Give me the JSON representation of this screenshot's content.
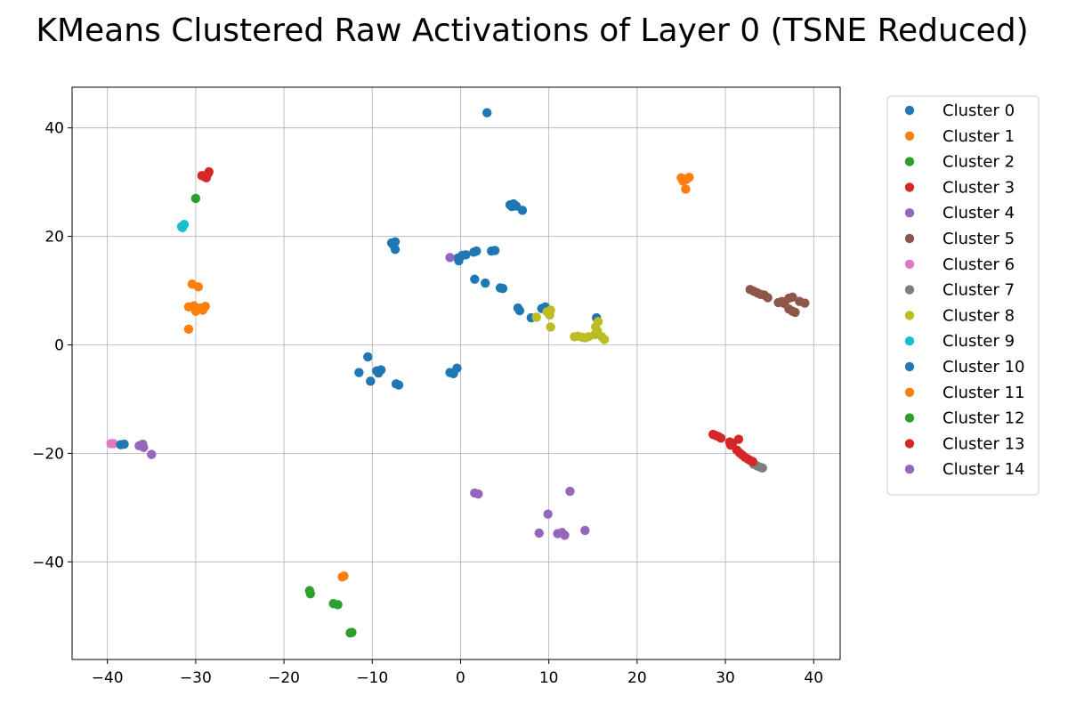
{
  "chart_data": {
    "type": "scatter",
    "title": "KMeans Clustered Raw Activations of Layer 0 (TSNE Reduced)",
    "xlabel": "",
    "ylabel": "",
    "xlim": [
      -44,
      43
    ],
    "ylim": [
      -58,
      47.5
    ],
    "xticks": [
      -40,
      -30,
      -20,
      -10,
      0,
      10,
      20,
      30,
      40
    ],
    "yticks": [
      -40,
      -20,
      0,
      20,
      40
    ],
    "xtick_labels": [
      "−40",
      "−30",
      "−20",
      "−10",
      "0",
      "10",
      "20",
      "30",
      "40"
    ],
    "ytick_labels": [
      "−40",
      "−20",
      "0",
      "20",
      "40"
    ],
    "grid": true,
    "legend_position": "outside-top-right",
    "series": [
      {
        "name": "Cluster 0",
        "color": "#1f77b4",
        "points": [
          [
            3.0,
            42.8
          ],
          [
            5.6,
            25.8
          ],
          [
            6.0,
            26.0
          ],
          [
            6.3,
            25.6
          ],
          [
            5.8,
            25.5
          ],
          [
            7.0,
            24.8
          ],
          [
            -7.8,
            18.8
          ],
          [
            -7.4,
            19.0
          ],
          [
            -7.6,
            18.4
          ],
          [
            -7.4,
            17.6
          ],
          [
            1.5,
            17.1
          ],
          [
            1.8,
            17.3
          ],
          [
            3.5,
            17.3
          ],
          [
            3.9,
            17.4
          ],
          [
            0.2,
            16.5
          ],
          [
            0.6,
            16.6
          ],
          [
            -0.3,
            16.0
          ],
          [
            -0.2,
            15.5
          ],
          [
            1.6,
            12.1
          ],
          [
            2.8,
            11.4
          ],
          [
            4.5,
            10.5
          ],
          [
            4.8,
            10.4
          ],
          [
            6.5,
            6.8
          ],
          [
            6.7,
            6.3
          ],
          [
            9.2,
            6.7
          ],
          [
            9.6,
            7.0
          ],
          [
            8.0,
            5.0
          ],
          [
            15.4,
            5.0
          ]
        ]
      },
      {
        "name": "Cluster 1",
        "color": "#ff7f0e",
        "points": [
          [
            25.0,
            30.8
          ],
          [
            25.6,
            30.5
          ],
          [
            25.2,
            30.2
          ],
          [
            25.9,
            30.9
          ],
          [
            25.5,
            28.7
          ]
        ]
      },
      {
        "name": "Cluster 2",
        "color": "#2ca02c",
        "points": [
          [
            -30.0,
            27.0
          ]
        ]
      },
      {
        "name": "Cluster 3",
        "color": "#d62728",
        "points": [
          [
            -29.0,
            31.0
          ],
          [
            -28.6,
            31.6
          ],
          [
            -28.8,
            30.8
          ],
          [
            -29.3,
            31.2
          ],
          [
            -28.5,
            31.9
          ]
        ]
      },
      {
        "name": "Cluster 4",
        "color": "#9467bd",
        "points": [
          [
            -1.2,
            16.1
          ]
        ]
      },
      {
        "name": "Cluster 5",
        "color": "#8c564b",
        "points": [
          [
            32.8,
            10.2
          ],
          [
            33.2,
            9.9
          ],
          [
            33.6,
            9.6
          ],
          [
            34.0,
            9.3
          ],
          [
            34.4,
            9.2
          ],
          [
            34.8,
            8.7
          ],
          [
            36.0,
            7.8
          ],
          [
            36.4,
            8.0
          ],
          [
            36.7,
            7.6
          ],
          [
            37.2,
            8.6
          ],
          [
            37.6,
            8.8
          ],
          [
            37.2,
            6.6
          ],
          [
            37.6,
            6.2
          ],
          [
            37.9,
            6.0
          ],
          [
            38.4,
            8.0
          ],
          [
            39.0,
            7.7
          ]
        ]
      },
      {
        "name": "Cluster 6",
        "color": "#e377c2",
        "points": [
          [
            -39.6,
            -18.2
          ],
          [
            -39.3,
            -18.2
          ]
        ]
      },
      {
        "name": "Cluster 7",
        "color": "#7f7f7f",
        "points": [
          [
            33.2,
            -22.0
          ],
          [
            33.6,
            -22.3
          ],
          [
            34.0,
            -22.6
          ],
          [
            34.2,
            -22.7
          ]
        ]
      },
      {
        "name": "Cluster 8",
        "color": "#bcbd22",
        "points": [
          [
            8.6,
            5.1
          ],
          [
            9.8,
            6.1
          ],
          [
            10.1,
            5.5
          ],
          [
            10.2,
            6.4
          ],
          [
            10.2,
            3.3
          ],
          [
            12.9,
            1.5
          ],
          [
            13.3,
            1.6
          ],
          [
            13.8,
            1.4
          ],
          [
            14.1,
            1.3
          ],
          [
            14.5,
            1.5
          ],
          [
            15.2,
            1.9
          ],
          [
            15.5,
            2.6
          ],
          [
            15.3,
            3.3
          ],
          [
            15.6,
            4.3
          ],
          [
            16.0,
            1.5
          ],
          [
            16.3,
            1.0
          ]
        ]
      },
      {
        "name": "Cluster 9",
        "color": "#17becf",
        "points": [
          [
            -31.6,
            21.8
          ],
          [
            -31.3,
            22.2
          ],
          [
            -31.5,
            21.6
          ]
        ]
      },
      {
        "name": "Cluster 10",
        "color": "#1f77b4",
        "points": [
          [
            -10.5,
            -2.2
          ],
          [
            -11.5,
            -5.1
          ],
          [
            -9.5,
            -4.8
          ],
          [
            -9.0,
            -4.6
          ],
          [
            -9.3,
            -5.2
          ],
          [
            -10.2,
            -6.7
          ],
          [
            -7.0,
            -7.4
          ],
          [
            -7.3,
            -7.2
          ],
          [
            -1.2,
            -5.1
          ],
          [
            -0.8,
            -5.3
          ],
          [
            -0.4,
            -4.3
          ],
          [
            -38.5,
            -18.4
          ],
          [
            -38.1,
            -18.3
          ]
        ]
      },
      {
        "name": "Cluster 11",
        "color": "#ff7f0e",
        "points": [
          [
            -30.8,
            7.0
          ],
          [
            -30.2,
            7.2
          ],
          [
            -29.5,
            6.8
          ],
          [
            -28.9,
            7.1
          ],
          [
            -30.0,
            6.2
          ],
          [
            -29.2,
            6.4
          ],
          [
            -30.4,
            11.2
          ],
          [
            -29.7,
            10.7
          ],
          [
            -30.8,
            2.9
          ],
          [
            -13.4,
            -42.8
          ],
          [
            -13.2,
            -42.6
          ]
        ]
      },
      {
        "name": "Cluster 12",
        "color": "#2ca02c",
        "points": [
          [
            -17.1,
            -45.3
          ],
          [
            -17.0,
            -45.9
          ],
          [
            -14.4,
            -47.7
          ],
          [
            -13.9,
            -47.9
          ],
          [
            -12.5,
            -53.1
          ],
          [
            -12.3,
            -53.0
          ]
        ]
      },
      {
        "name": "Cluster 13",
        "color": "#d62728",
        "points": [
          [
            28.6,
            -16.5
          ],
          [
            28.9,
            -16.7
          ],
          [
            29.2,
            -16.9
          ],
          [
            29.5,
            -17.2
          ],
          [
            30.5,
            -17.9
          ],
          [
            30.8,
            -18.1
          ],
          [
            30.6,
            -18.5
          ],
          [
            31.5,
            -17.4
          ],
          [
            31.3,
            -19.4
          ],
          [
            31.6,
            -19.9
          ],
          [
            31.9,
            -20.3
          ],
          [
            32.2,
            -20.7
          ],
          [
            32.5,
            -21.0
          ],
          [
            32.8,
            -21.3
          ],
          [
            33.1,
            -21.5
          ]
        ]
      },
      {
        "name": "Cluster 14",
        "color": "#9467bd",
        "points": [
          [
            -36.4,
            -18.6
          ],
          [
            -36.0,
            -18.3
          ],
          [
            -35.9,
            -18.9
          ],
          [
            -35.0,
            -20.2
          ],
          [
            1.6,
            -27.3
          ],
          [
            2.0,
            -27.5
          ],
          [
            12.4,
            -27.0
          ],
          [
            9.9,
            -31.2
          ],
          [
            8.9,
            -34.7
          ],
          [
            11.0,
            -34.8
          ],
          [
            11.5,
            -34.6
          ],
          [
            11.8,
            -35.1
          ],
          [
            14.1,
            -34.2
          ]
        ]
      }
    ]
  }
}
